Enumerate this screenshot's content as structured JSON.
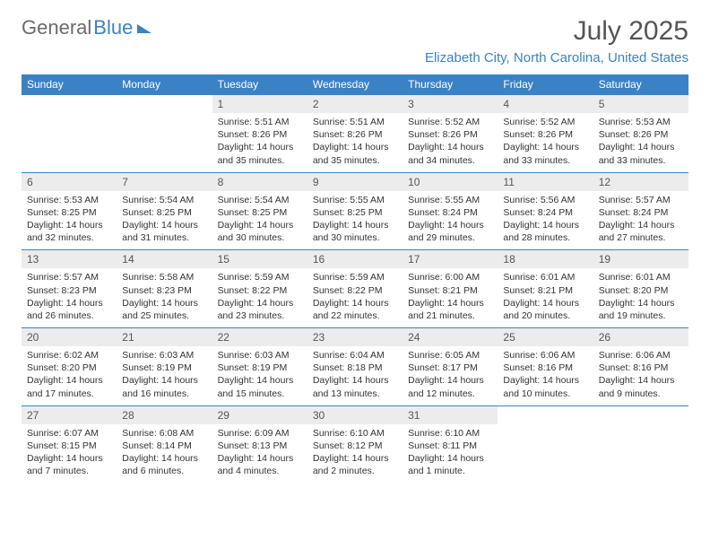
{
  "logo": {
    "word1": "General",
    "word2": "Blue"
  },
  "title": "July 2025",
  "location": "Elizabeth City, North Carolina, United States",
  "columns": [
    "Sunday",
    "Monday",
    "Tuesday",
    "Wednesday",
    "Thursday",
    "Friday",
    "Saturday"
  ],
  "colors": {
    "brand_blue": "#3b82c4",
    "header_gray": "#6b6b6b",
    "num_bg": "#ececec",
    "text": "#333333",
    "title_gray": "#555555",
    "bg": "#ffffff"
  },
  "typography": {
    "month_title_pt": 30,
    "location_pt": 15,
    "logo_pt": 22,
    "head_pt": 12,
    "daynum_pt": 12,
    "cell_pt": 10.5
  },
  "layout": {
    "cols": 7,
    "rows": 5
  },
  "weeks": [
    [
      null,
      null,
      {
        "n": "1",
        "sunrise": "Sunrise: 5:51 AM",
        "sunset": "Sunset: 8:26 PM",
        "day1": "Daylight: 14 hours",
        "day2": "and 35 minutes."
      },
      {
        "n": "2",
        "sunrise": "Sunrise: 5:51 AM",
        "sunset": "Sunset: 8:26 PM",
        "day1": "Daylight: 14 hours",
        "day2": "and 35 minutes."
      },
      {
        "n": "3",
        "sunrise": "Sunrise: 5:52 AM",
        "sunset": "Sunset: 8:26 PM",
        "day1": "Daylight: 14 hours",
        "day2": "and 34 minutes."
      },
      {
        "n": "4",
        "sunrise": "Sunrise: 5:52 AM",
        "sunset": "Sunset: 8:26 PM",
        "day1": "Daylight: 14 hours",
        "day2": "and 33 minutes."
      },
      {
        "n": "5",
        "sunrise": "Sunrise: 5:53 AM",
        "sunset": "Sunset: 8:26 PM",
        "day1": "Daylight: 14 hours",
        "day2": "and 33 minutes."
      }
    ],
    [
      {
        "n": "6",
        "sunrise": "Sunrise: 5:53 AM",
        "sunset": "Sunset: 8:25 PM",
        "day1": "Daylight: 14 hours",
        "day2": "and 32 minutes."
      },
      {
        "n": "7",
        "sunrise": "Sunrise: 5:54 AM",
        "sunset": "Sunset: 8:25 PM",
        "day1": "Daylight: 14 hours",
        "day2": "and 31 minutes."
      },
      {
        "n": "8",
        "sunrise": "Sunrise: 5:54 AM",
        "sunset": "Sunset: 8:25 PM",
        "day1": "Daylight: 14 hours",
        "day2": "and 30 minutes."
      },
      {
        "n": "9",
        "sunrise": "Sunrise: 5:55 AM",
        "sunset": "Sunset: 8:25 PM",
        "day1": "Daylight: 14 hours",
        "day2": "and 30 minutes."
      },
      {
        "n": "10",
        "sunrise": "Sunrise: 5:55 AM",
        "sunset": "Sunset: 8:24 PM",
        "day1": "Daylight: 14 hours",
        "day2": "and 29 minutes."
      },
      {
        "n": "11",
        "sunrise": "Sunrise: 5:56 AM",
        "sunset": "Sunset: 8:24 PM",
        "day1": "Daylight: 14 hours",
        "day2": "and 28 minutes."
      },
      {
        "n": "12",
        "sunrise": "Sunrise: 5:57 AM",
        "sunset": "Sunset: 8:24 PM",
        "day1": "Daylight: 14 hours",
        "day2": "and 27 minutes."
      }
    ],
    [
      {
        "n": "13",
        "sunrise": "Sunrise: 5:57 AM",
        "sunset": "Sunset: 8:23 PM",
        "day1": "Daylight: 14 hours",
        "day2": "and 26 minutes."
      },
      {
        "n": "14",
        "sunrise": "Sunrise: 5:58 AM",
        "sunset": "Sunset: 8:23 PM",
        "day1": "Daylight: 14 hours",
        "day2": "and 25 minutes."
      },
      {
        "n": "15",
        "sunrise": "Sunrise: 5:59 AM",
        "sunset": "Sunset: 8:22 PM",
        "day1": "Daylight: 14 hours",
        "day2": "and 23 minutes."
      },
      {
        "n": "16",
        "sunrise": "Sunrise: 5:59 AM",
        "sunset": "Sunset: 8:22 PM",
        "day1": "Daylight: 14 hours",
        "day2": "and 22 minutes."
      },
      {
        "n": "17",
        "sunrise": "Sunrise: 6:00 AM",
        "sunset": "Sunset: 8:21 PM",
        "day1": "Daylight: 14 hours",
        "day2": "and 21 minutes."
      },
      {
        "n": "18",
        "sunrise": "Sunrise: 6:01 AM",
        "sunset": "Sunset: 8:21 PM",
        "day1": "Daylight: 14 hours",
        "day2": "and 20 minutes."
      },
      {
        "n": "19",
        "sunrise": "Sunrise: 6:01 AM",
        "sunset": "Sunset: 8:20 PM",
        "day1": "Daylight: 14 hours",
        "day2": "and 19 minutes."
      }
    ],
    [
      {
        "n": "20",
        "sunrise": "Sunrise: 6:02 AM",
        "sunset": "Sunset: 8:20 PM",
        "day1": "Daylight: 14 hours",
        "day2": "and 17 minutes."
      },
      {
        "n": "21",
        "sunrise": "Sunrise: 6:03 AM",
        "sunset": "Sunset: 8:19 PM",
        "day1": "Daylight: 14 hours",
        "day2": "and 16 minutes."
      },
      {
        "n": "22",
        "sunrise": "Sunrise: 6:03 AM",
        "sunset": "Sunset: 8:19 PM",
        "day1": "Daylight: 14 hours",
        "day2": "and 15 minutes."
      },
      {
        "n": "23",
        "sunrise": "Sunrise: 6:04 AM",
        "sunset": "Sunset: 8:18 PM",
        "day1": "Daylight: 14 hours",
        "day2": "and 13 minutes."
      },
      {
        "n": "24",
        "sunrise": "Sunrise: 6:05 AM",
        "sunset": "Sunset: 8:17 PM",
        "day1": "Daylight: 14 hours",
        "day2": "and 12 minutes."
      },
      {
        "n": "25",
        "sunrise": "Sunrise: 6:06 AM",
        "sunset": "Sunset: 8:16 PM",
        "day1": "Daylight: 14 hours",
        "day2": "and 10 minutes."
      },
      {
        "n": "26",
        "sunrise": "Sunrise: 6:06 AM",
        "sunset": "Sunset: 8:16 PM",
        "day1": "Daylight: 14 hours",
        "day2": "and 9 minutes."
      }
    ],
    [
      {
        "n": "27",
        "sunrise": "Sunrise: 6:07 AM",
        "sunset": "Sunset: 8:15 PM",
        "day1": "Daylight: 14 hours",
        "day2": "and 7 minutes."
      },
      {
        "n": "28",
        "sunrise": "Sunrise: 6:08 AM",
        "sunset": "Sunset: 8:14 PM",
        "day1": "Daylight: 14 hours",
        "day2": "and 6 minutes."
      },
      {
        "n": "29",
        "sunrise": "Sunrise: 6:09 AM",
        "sunset": "Sunset: 8:13 PM",
        "day1": "Daylight: 14 hours",
        "day2": "and 4 minutes."
      },
      {
        "n": "30",
        "sunrise": "Sunrise: 6:10 AM",
        "sunset": "Sunset: 8:12 PM",
        "day1": "Daylight: 14 hours",
        "day2": "and 2 minutes."
      },
      {
        "n": "31",
        "sunrise": "Sunrise: 6:10 AM",
        "sunset": "Sunset: 8:11 PM",
        "day1": "Daylight: 14 hours",
        "day2": "and 1 minute."
      },
      null,
      null
    ]
  ]
}
